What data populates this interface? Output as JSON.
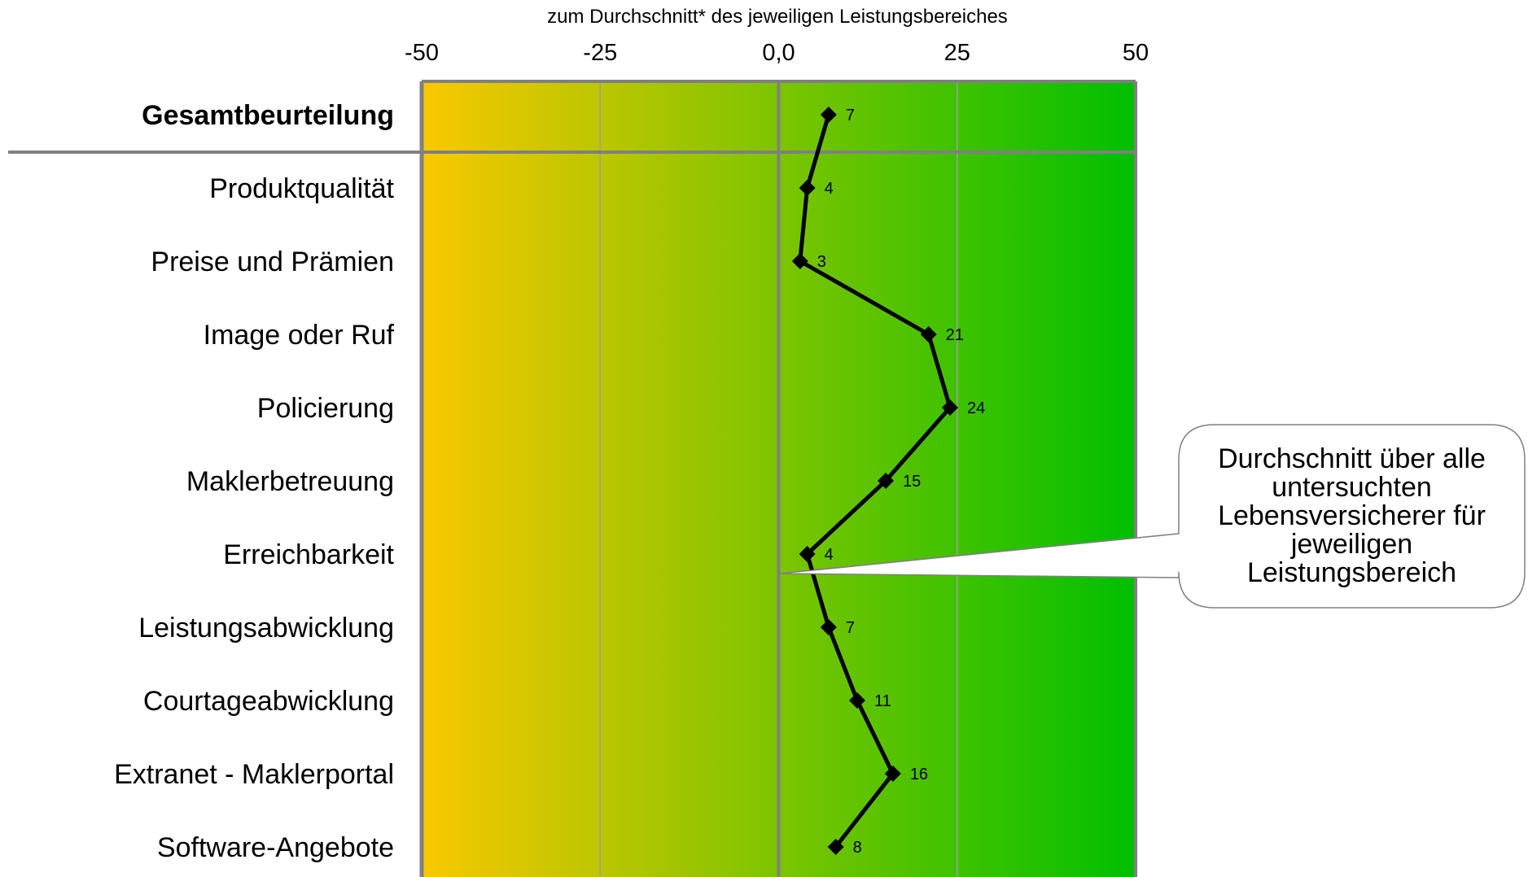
{
  "chart_data": {
    "type": "line",
    "title": "zum Durchschnitt* des jeweiligen Leistungsbereiches",
    "xlim": [
      -50,
      50
    ],
    "x_ticks": [
      -50,
      -25,
      0,
      25,
      50
    ],
    "x_tick_labels": [
      "-50",
      "-25",
      "0,0",
      "25",
      "50"
    ],
    "categories": [
      "Gesamtbeurteilung",
      "Produktqualität",
      "Preise und Prämien",
      "Image oder Ruf",
      "Policierung",
      "Maklerbetreuung",
      "Erreichbarkeit",
      "Leistungsabwicklung",
      "Courtageabwicklung",
      "Extranet - Maklerportal",
      "Software-Angebote"
    ],
    "bold_category": "Gesamtbeurteilung",
    "values": [
      7,
      4,
      3,
      21,
      24,
      15,
      4,
      7,
      11,
      16,
      8
    ],
    "grid": true,
    "background_gradient": [
      "#fac800",
      "#00c000"
    ],
    "line_color": "#000000",
    "frame_color": "#808080"
  },
  "callout": {
    "text": "Durchschnitt über alle untersuchten Lebensversicherer für jeweiligen Leistungsbereich"
  }
}
